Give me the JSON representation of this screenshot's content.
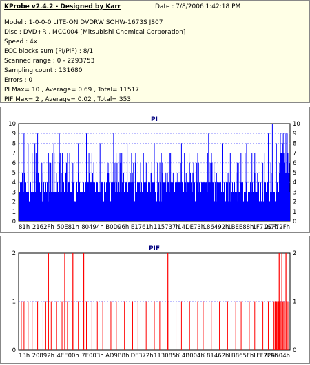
{
  "header": {
    "title": "KProbe v2.4.2 - Designed by Karr",
    "date": "Date : 7/8/2006 1:42:18 PM",
    "lines": [
      "Model : 1-0-0-0 LITE-ON DVDRW SOHW-1673S JS07",
      "Disc : DVD+R , MCC004 [Mitsubishi Chemical Corporation]",
      "Speed : 4x",
      "ECC blocks sum (PI/PIF) : 8/1",
      "Scanned range : 0 - 2293753",
      "Sampling count : 131680",
      "Errors : 0",
      "PI Max= 10 , Average= 0.69 , Total= 11517",
      "PIF Max= 2 , Average= 0.02 , Total= 353"
    ]
  },
  "chart_data": [
    {
      "type": "bar",
      "title": "PI",
      "ylim": [
        0,
        10
      ],
      "yticks": [
        0,
        1,
        2,
        3,
        4,
        5,
        6,
        7,
        8,
        9,
        10
      ],
      "xticks": [
        "81h",
        "2162Fh",
        "50E81h",
        "80494h",
        "B0D96h",
        "E1761h",
        "115737h",
        "14DE73h",
        "186492h",
        "1BEE88h",
        "1F7167h",
        "22F72Fh"
      ],
      "color": "#0000ff",
      "grid": true,
      "baseline_band": [
        0,
        5
      ],
      "spikes": [
        [
          0.02,
          9
        ],
        [
          0.035,
          8
        ],
        [
          0.05,
          7
        ],
        [
          0.06,
          8
        ],
        [
          0.07,
          9
        ],
        [
          0.09,
          6
        ],
        [
          0.11,
          7
        ],
        [
          0.13,
          8
        ],
        [
          0.15,
          9
        ],
        [
          0.18,
          7
        ],
        [
          0.2,
          6
        ],
        [
          0.22,
          8
        ],
        [
          0.25,
          9
        ],
        [
          0.27,
          7
        ],
        [
          0.3,
          8
        ],
        [
          0.33,
          6
        ],
        [
          0.35,
          9
        ],
        [
          0.38,
          7
        ],
        [
          0.4,
          8
        ],
        [
          0.43,
          6
        ],
        [
          0.46,
          7
        ],
        [
          0.5,
          8
        ],
        [
          0.53,
          6
        ],
        [
          0.56,
          7
        ],
        [
          0.6,
          8
        ],
        [
          0.63,
          6
        ],
        [
          0.66,
          7
        ],
        [
          0.7,
          9
        ],
        [
          0.72,
          6
        ],
        [
          0.75,
          8
        ],
        [
          0.78,
          7
        ],
        [
          0.81,
          6
        ],
        [
          0.84,
          8
        ],
        [
          0.87,
          7
        ],
        [
          0.9,
          6
        ],
        [
          0.92,
          9
        ],
        [
          0.935,
          10
        ],
        [
          0.95,
          8
        ],
        [
          0.965,
          7
        ],
        [
          0.975,
          9
        ],
        [
          0.99,
          6
        ]
      ]
    },
    {
      "type": "bar",
      "title": "PIF",
      "ylim": [
        0,
        2
      ],
      "yticks": [
        0,
        1,
        2
      ],
      "xticks": [
        "13h",
        "20892h",
        "4EE00h",
        "7E003h",
        "AD9B8h",
        "DF372h",
        "113085h",
        "14B004h",
        "181462h",
        "1B865Fh",
        "1EF7F9h",
        "226B04h"
      ],
      "color": "#ff0000",
      "grid": true,
      "ones": [
        0.01,
        0.02,
        0.035,
        0.05,
        0.07,
        0.09,
        0.1,
        0.12,
        0.14,
        0.16,
        0.18,
        0.2,
        0.22,
        0.25,
        0.27,
        0.29,
        0.31,
        0.34,
        0.36,
        0.39,
        0.42,
        0.44,
        0.47,
        0.5,
        0.52,
        0.55,
        0.58,
        0.6,
        0.63,
        0.66,
        0.68,
        0.71,
        0.74,
        0.77,
        0.8,
        0.82,
        0.85,
        0.87,
        0.9,
        0.92,
        0.94,
        0.95,
        0.96,
        0.965,
        0.97,
        0.975,
        0.98,
        0.985,
        0.99,
        0.995
      ],
      "twos": [
        0.11,
        0.17,
        0.2,
        0.24,
        0.55,
        0.96,
        0.97,
        0.985
      ]
    }
  ]
}
